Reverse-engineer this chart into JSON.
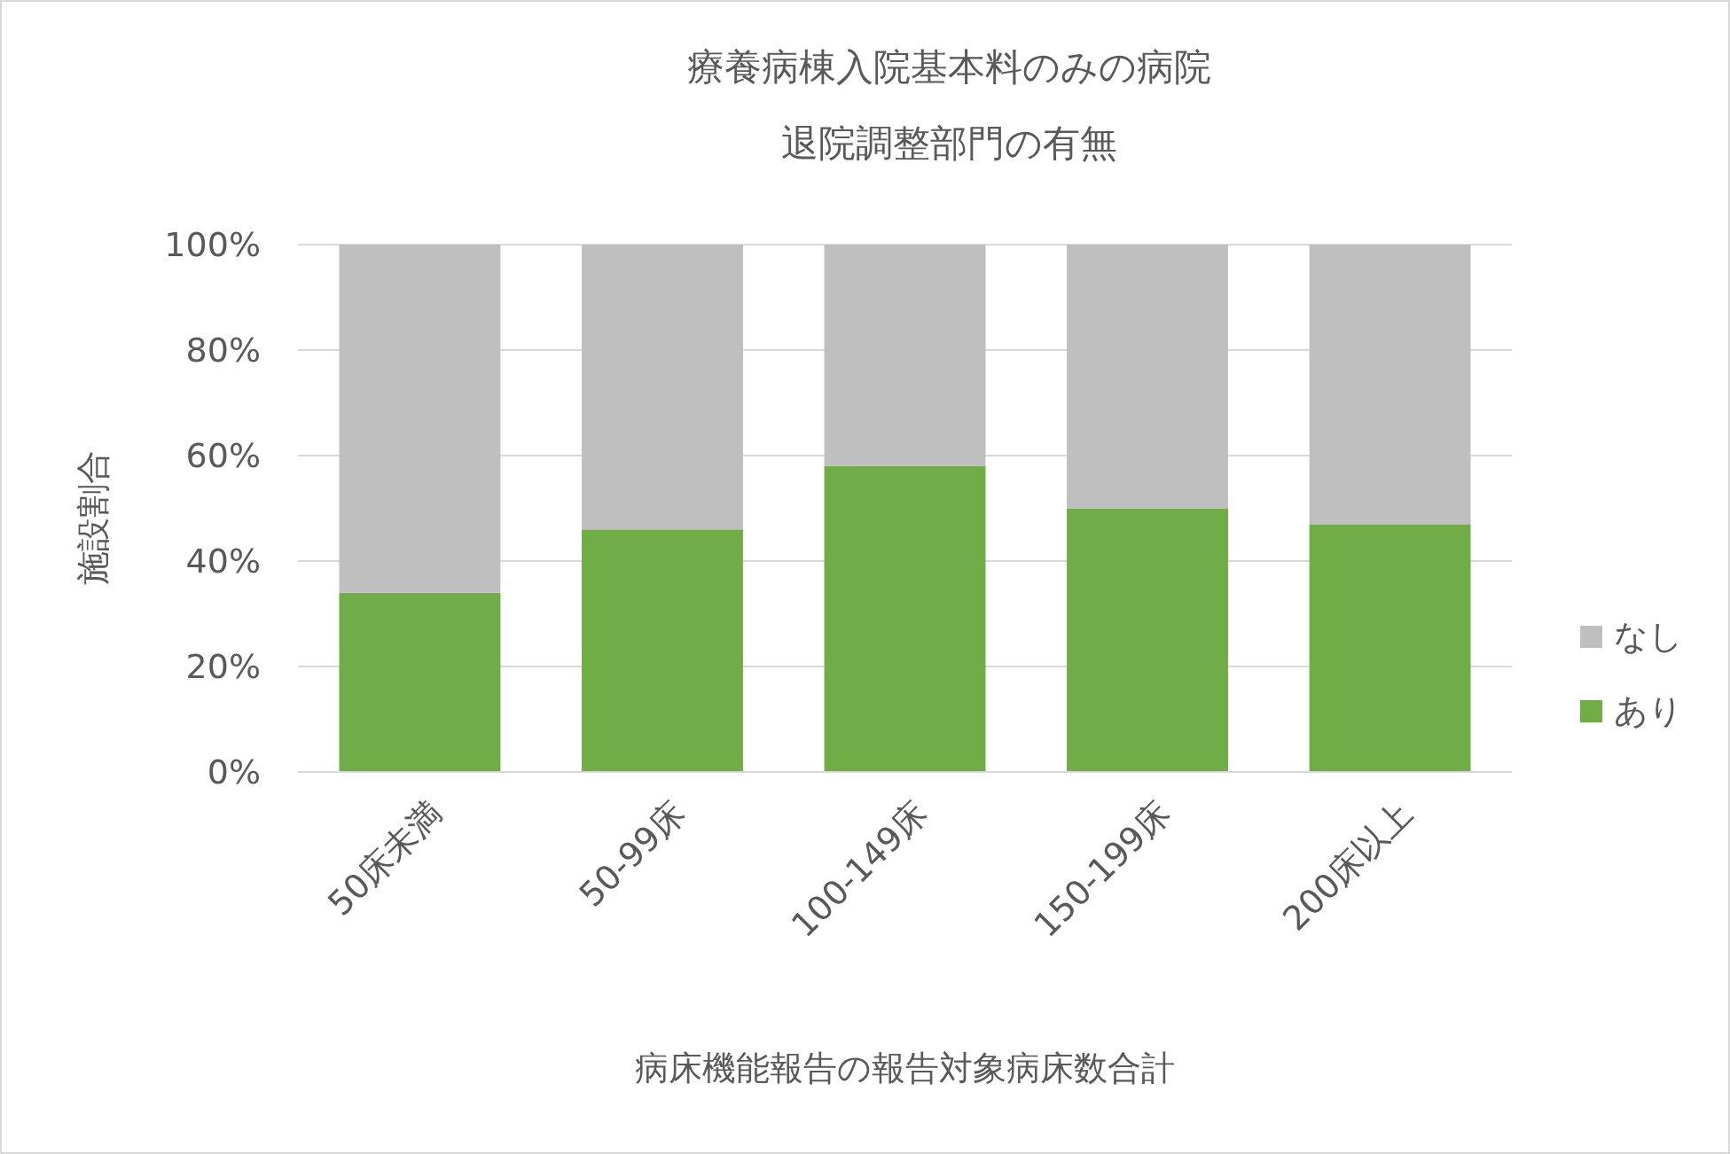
{
  "chart_data": {
    "type": "bar",
    "title": "療養病棟入院基本料のみの病院",
    "subtitle": "退院調整部門の有無",
    "xlabel": "病床機能報告の報告対象病床数合計",
    "ylabel": "施設割合",
    "categories": [
      "50床未満",
      "50-99床",
      "100-149床",
      "150-199床",
      "200床以上"
    ],
    "series": [
      {
        "name": "あり",
        "color": "#70ad47",
        "values": [
          34,
          46,
          58,
          50,
          47
        ]
      },
      {
        "name": "なし",
        "color": "#bfbfbf",
        "values": [
          66,
          54,
          42,
          50,
          53
        ]
      }
    ],
    "stacked": true,
    "ylim": [
      0,
      100
    ],
    "yticks": [
      {
        "value": 0,
        "label": "0%"
      },
      {
        "value": 20,
        "label": "20%"
      },
      {
        "value": 40,
        "label": "40%"
      },
      {
        "value": 60,
        "label": "60%"
      },
      {
        "value": 80,
        "label": "80%"
      },
      {
        "value": 100,
        "label": "100%"
      }
    ],
    "grid": "y",
    "legend": "right"
  }
}
